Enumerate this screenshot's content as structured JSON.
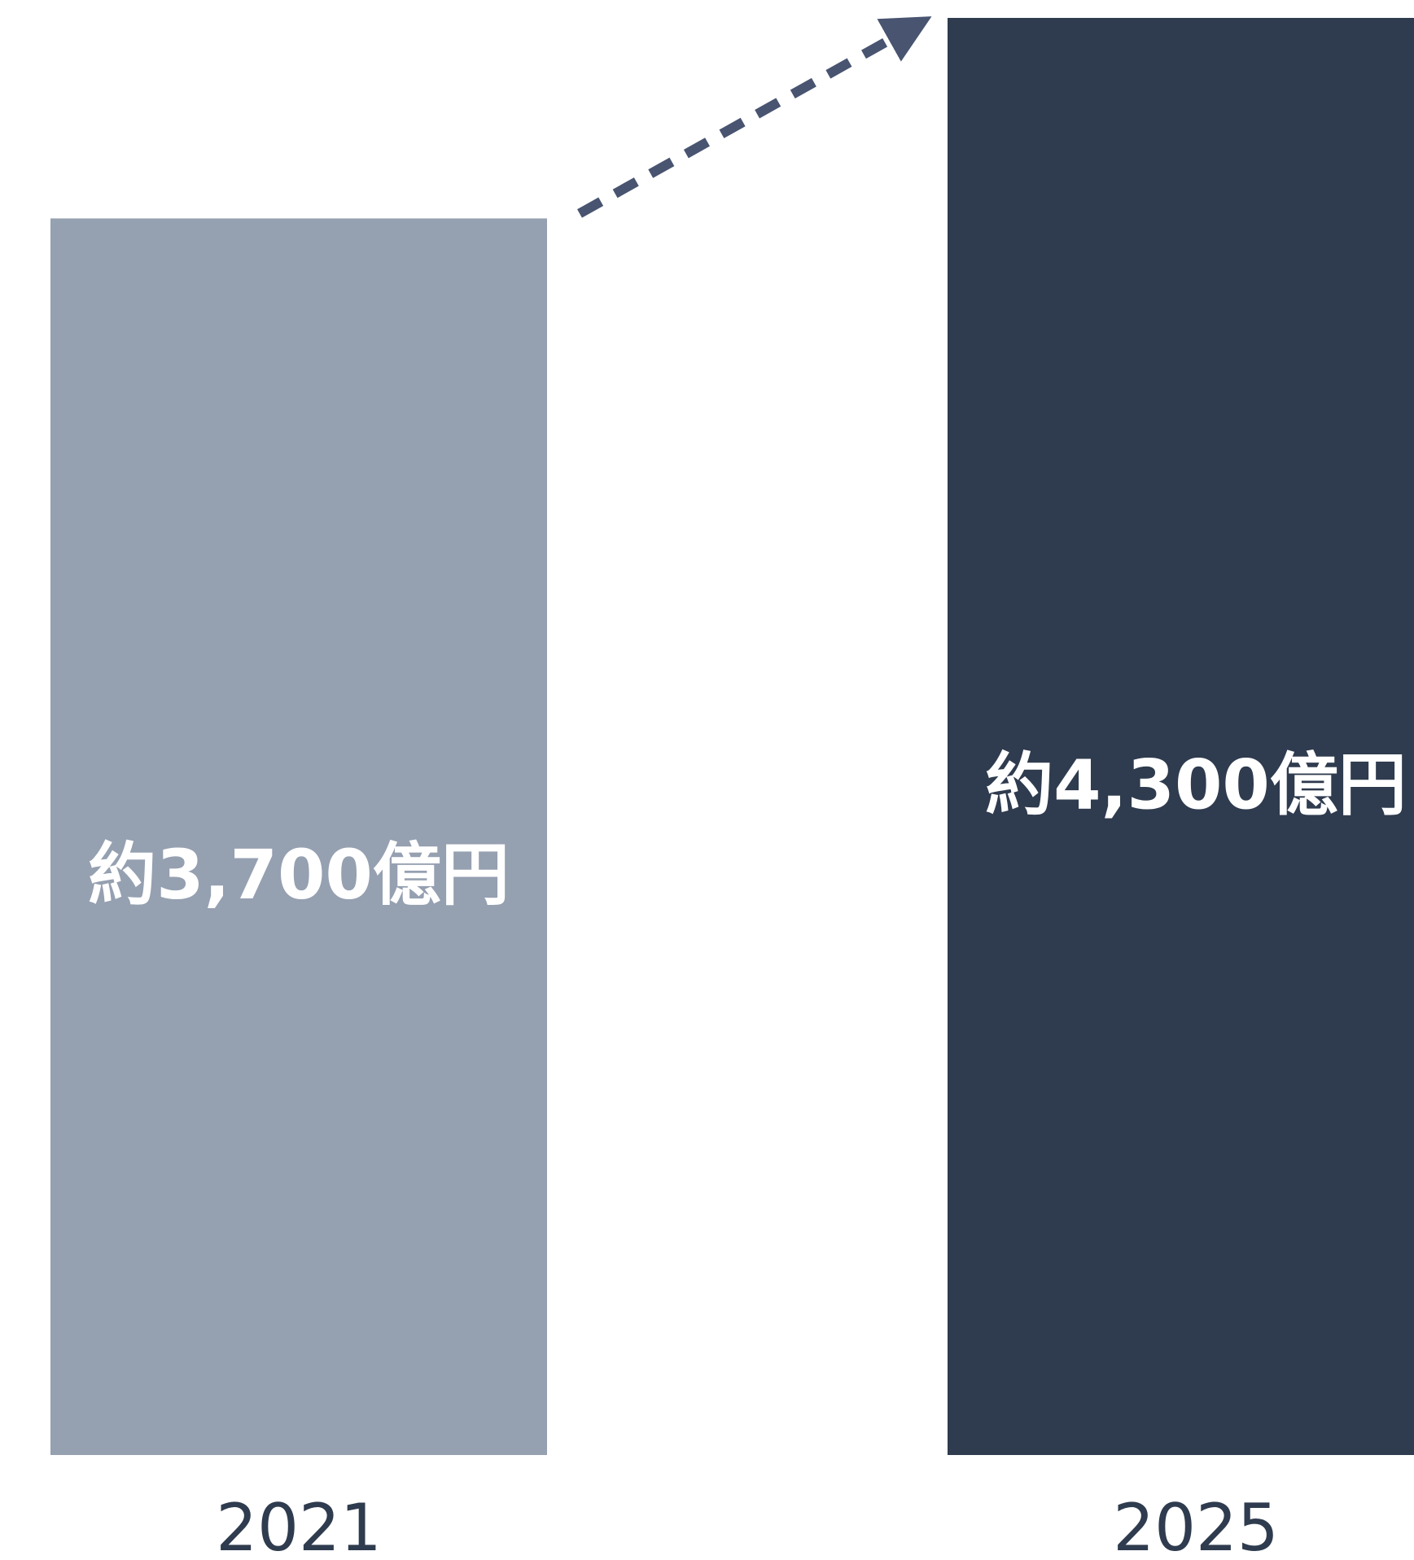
{
  "chart_data": {
    "type": "bar",
    "categories": [
      "2021",
      "2025"
    ],
    "values": [
      3700,
      4300
    ],
    "value_labels": [
      "約3,700億円",
      "約4,300億円"
    ],
    "title": "",
    "xlabel": "",
    "ylabel": "",
    "ylim": [
      0,
      4300
    ],
    "grid": false,
    "legend": "none",
    "annotations": [
      {
        "type": "dashed-arrow",
        "from_category": "2021",
        "to_category": "2025",
        "meaning": "growth"
      }
    ],
    "colors": {
      "bars": [
        "#95a0b1",
        "#2f3b4e"
      ],
      "arrow": "#485470",
      "category_text": "#2f3b4e",
      "value_text": "#ffffff"
    }
  }
}
